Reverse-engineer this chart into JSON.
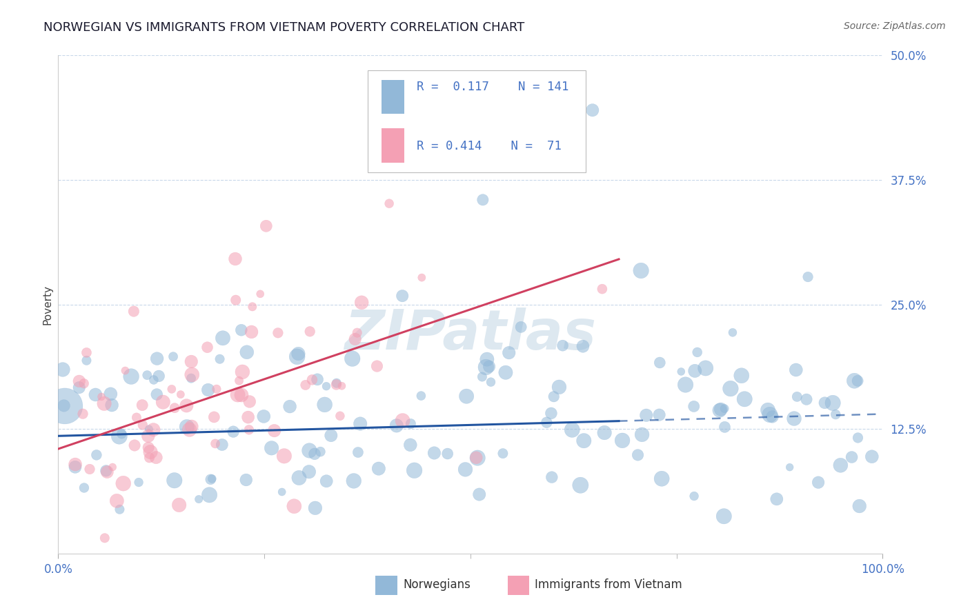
{
  "title": "NORWEGIAN VS IMMIGRANTS FROM VIETNAM POVERTY CORRELATION CHART",
  "source": "Source: ZipAtlas.com",
  "ylabel": "Poverty",
  "xlim": [
    0,
    1
  ],
  "ylim": [
    0,
    0.5
  ],
  "norwegian_R": 0.117,
  "norwegian_N": 141,
  "vietnam_R": 0.414,
  "vietnam_N": 71,
  "blue_color": "#92b8d8",
  "pink_color": "#f4a0b4",
  "blue_line_color": "#2255a0",
  "pink_line_color": "#d04060",
  "background_color": "#ffffff",
  "grid_color": "#c8d8ea",
  "axis_label_color": "#4472c4",
  "ylabel_color": "#404040",
  "title_color": "#1a1a2e",
  "source_color": "#666666",
  "watermark_color": "#dde8f0",
  "legend_entries": [
    "Norwegians",
    "Immigrants from Vietnam"
  ],
  "title_fontsize": 13,
  "seed": 42,
  "n_norwegian": 141,
  "n_vietnam": 71,
  "nor_intercept": 0.118,
  "nor_slope_manual": 0.022,
  "viet_intercept": 0.105,
  "viet_slope_manual": 0.28
}
